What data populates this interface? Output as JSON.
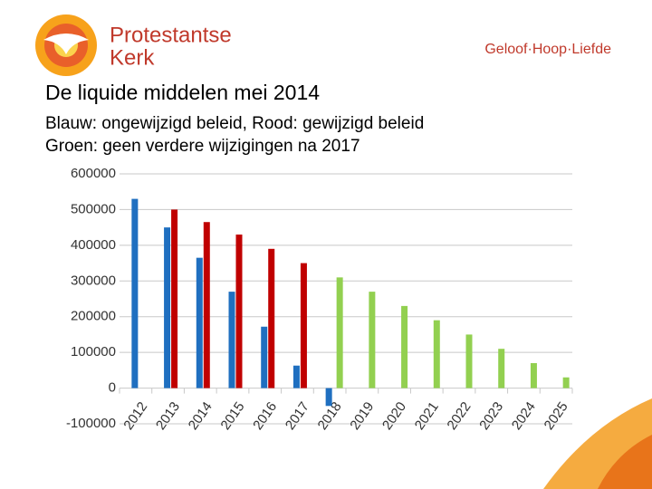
{
  "header": {
    "brand": [
      "Protestantse",
      "Kerk"
    ],
    "slogan": "Geloof·Hoop·Liefde"
  },
  "chart_data": {
    "type": "bar",
    "title": "De liquide middelen mei 2014",
    "subtitle": [
      "Blauw: ongewijzigd beleid, Rood: gewijzigd beleid",
      "Groen: geen verdere wijzigingen na 2017"
    ],
    "categories": [
      "2012",
      "2013",
      "2014",
      "2015",
      "2016",
      "2017",
      "2018",
      "2019",
      "2020",
      "2021",
      "2022",
      "2023",
      "2024",
      "2025"
    ],
    "series": [
      {
        "color": "#1f6fc0",
        "values": [
          530000,
          450000,
          365000,
          270000,
          172000,
          63000,
          -50000,
          null,
          null,
          null,
          null,
          null,
          null,
          null
        ]
      },
      {
        "color": "#c00000",
        "values": [
          null,
          500000,
          465000,
          430000,
          390000,
          350000,
          null,
          null,
          null,
          null,
          null,
          null,
          null,
          null
        ]
      },
      {
        "color": "#92d050",
        "values": [
          null,
          null,
          null,
          null,
          null,
          null,
          310000,
          270000,
          230000,
          190000,
          150000,
          110000,
          70000,
          30000
        ]
      }
    ],
    "ylim": [
      -100000,
      600000
    ],
    "yticks": [
      -100000,
      0,
      100000,
      200000,
      300000,
      400000,
      500000,
      600000
    ],
    "grid": true
  }
}
